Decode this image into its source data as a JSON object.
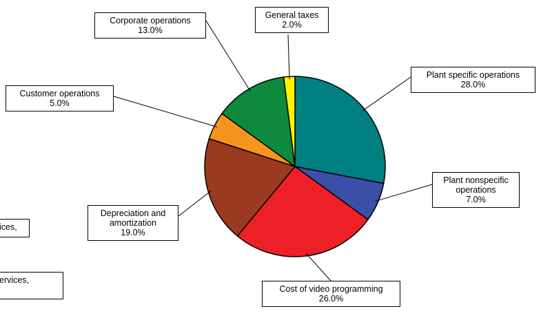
{
  "chart_data": {
    "type": "pie",
    "categories": [
      "Plant specific operations",
      "Plant nonspecific operations",
      "Cost of video programming",
      "Depreciation and amortization",
      "Customer operations",
      "Corporate operations",
      "General taxes"
    ],
    "values": [
      28,
      7,
      26,
      19,
      5,
      13,
      2
    ],
    "value_labels": [
      "28.0%",
      "7.0%",
      "26.0%",
      "19.0%",
      "5.0%",
      "13.0%",
      "2.0%"
    ],
    "colors": [
      "#008080",
      "#3a4fa8",
      "#ee2027",
      "#9b3a1f",
      "#f7941d",
      "#0d8a3c",
      "#fff200"
    ],
    "annotations": [
      "ices,",
      "ervices,"
    ]
  }
}
